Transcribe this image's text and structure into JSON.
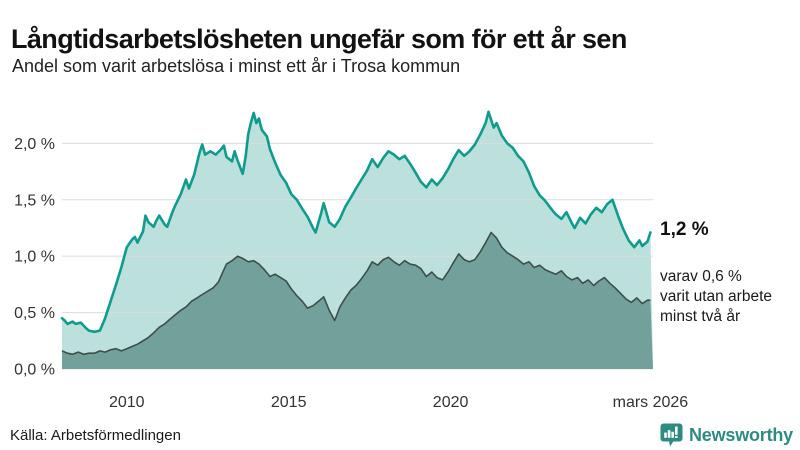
{
  "header": {
    "title": "Långtidsarbetslösheten ungefär som för ett år sen",
    "subtitle": "Andel som varit arbetslösa i minst ett år i Trosa kommun"
  },
  "annotations": {
    "latest_value": "1,2 %",
    "secondary_line1": "varav 0,6 %",
    "secondary_line2": "varit utan arbete",
    "secondary_line3": "minst två år"
  },
  "footer": {
    "source": "Källa: Arbetsförmedlingen",
    "brand": "Newsworthy"
  },
  "colors": {
    "accent_teal_line": "#0f9b8e",
    "light_area_fill": "#bce0db",
    "dark_area_line": "#3e4f4b",
    "dark_area_fill": "#72a19b",
    "gridline": "#dcdcdc",
    "axis_label": "#333333",
    "brand_teal": "#2e8b82"
  },
  "chart_data": {
    "type": "area",
    "title": "Långtidsarbetslösheten ungefär som för ett år sen",
    "subtitle": "Andel som varit arbetslösa i minst ett år i Trosa kommun",
    "xlabel": "",
    "ylabel": "",
    "x_range": [
      2008,
      2026.25
    ],
    "y_range": [
      0,
      2.34
    ],
    "grid": true,
    "legend_position": "none",
    "y_ticks": [
      {
        "v": 0.0,
        "label": "0,0 %"
      },
      {
        "v": 0.5,
        "label": "0,5 %"
      },
      {
        "v": 1.0,
        "label": "1,0 %"
      },
      {
        "v": 1.5,
        "label": "1,5 %"
      },
      {
        "v": 2.0,
        "label": "2,0 %"
      }
    ],
    "x_ticks": [
      {
        "x": 2010,
        "label": "2010"
      },
      {
        "x": 2015,
        "label": "2015"
      },
      {
        "x": 2020,
        "label": "2020"
      },
      {
        "x": 2026.17,
        "label": "mars 2026"
      }
    ],
    "series": [
      {
        "name": "Andel arbetslösa minst ett år",
        "end_label": "1,2 %",
        "points": [
          [
            2008.0,
            0.45
          ],
          [
            2008.08,
            0.43
          ],
          [
            2008.17,
            0.4
          ],
          [
            2008.33,
            0.42
          ],
          [
            2008.42,
            0.4
          ],
          [
            2008.58,
            0.41
          ],
          [
            2008.75,
            0.36
          ],
          [
            2008.83,
            0.34
          ],
          [
            2009.0,
            0.33
          ],
          [
            2009.17,
            0.34
          ],
          [
            2009.33,
            0.45
          ],
          [
            2009.5,
            0.6
          ],
          [
            2009.67,
            0.75
          ],
          [
            2009.83,
            0.9
          ],
          [
            2010.0,
            1.08
          ],
          [
            2010.17,
            1.15
          ],
          [
            2010.25,
            1.17
          ],
          [
            2010.33,
            1.12
          ],
          [
            2010.5,
            1.22
          ],
          [
            2010.58,
            1.36
          ],
          [
            2010.67,
            1.3
          ],
          [
            2010.83,
            1.26
          ],
          [
            2010.92,
            1.32
          ],
          [
            2011.0,
            1.36
          ],
          [
            2011.17,
            1.28
          ],
          [
            2011.25,
            1.26
          ],
          [
            2011.42,
            1.4
          ],
          [
            2011.5,
            1.45
          ],
          [
            2011.67,
            1.55
          ],
          [
            2011.83,
            1.68
          ],
          [
            2011.92,
            1.6
          ],
          [
            2012.08,
            1.72
          ],
          [
            2012.25,
            1.92
          ],
          [
            2012.33,
            1.99
          ],
          [
            2012.42,
            1.9
          ],
          [
            2012.58,
            1.93
          ],
          [
            2012.75,
            1.9
          ],
          [
            2012.92,
            1.95
          ],
          [
            2013.0,
            1.98
          ],
          [
            2013.08,
            1.88
          ],
          [
            2013.25,
            1.84
          ],
          [
            2013.33,
            1.93
          ],
          [
            2013.42,
            1.85
          ],
          [
            2013.58,
            1.73
          ],
          [
            2013.67,
            1.88
          ],
          [
            2013.75,
            2.08
          ],
          [
            2013.83,
            2.18
          ],
          [
            2013.92,
            2.27
          ],
          [
            2014.0,
            2.18
          ],
          [
            2014.08,
            2.22
          ],
          [
            2014.17,
            2.12
          ],
          [
            2014.33,
            2.06
          ],
          [
            2014.42,
            1.95
          ],
          [
            2014.58,
            1.83
          ],
          [
            2014.75,
            1.72
          ],
          [
            2014.92,
            1.65
          ],
          [
            2015.08,
            1.55
          ],
          [
            2015.25,
            1.5
          ],
          [
            2015.42,
            1.42
          ],
          [
            2015.58,
            1.35
          ],
          [
            2015.75,
            1.25
          ],
          [
            2015.83,
            1.21
          ],
          [
            2016.0,
            1.38
          ],
          [
            2016.08,
            1.47
          ],
          [
            2016.25,
            1.3
          ],
          [
            2016.42,
            1.26
          ],
          [
            2016.58,
            1.33
          ],
          [
            2016.75,
            1.44
          ],
          [
            2016.92,
            1.52
          ],
          [
            2017.08,
            1.6
          ],
          [
            2017.25,
            1.68
          ],
          [
            2017.42,
            1.76
          ],
          [
            2017.58,
            1.86
          ],
          [
            2017.75,
            1.79
          ],
          [
            2017.92,
            1.87
          ],
          [
            2018.08,
            1.93
          ],
          [
            2018.25,
            1.9
          ],
          [
            2018.42,
            1.86
          ],
          [
            2018.58,
            1.89
          ],
          [
            2018.75,
            1.82
          ],
          [
            2018.92,
            1.74
          ],
          [
            2019.08,
            1.66
          ],
          [
            2019.25,
            1.61
          ],
          [
            2019.42,
            1.68
          ],
          [
            2019.58,
            1.63
          ],
          [
            2019.75,
            1.69
          ],
          [
            2019.92,
            1.77
          ],
          [
            2020.08,
            1.86
          ],
          [
            2020.25,
            1.94
          ],
          [
            2020.42,
            1.89
          ],
          [
            2020.58,
            1.93
          ],
          [
            2020.75,
            1.99
          ],
          [
            2020.92,
            2.08
          ],
          [
            2021.08,
            2.18
          ],
          [
            2021.17,
            2.28
          ],
          [
            2021.33,
            2.14
          ],
          [
            2021.42,
            2.18
          ],
          [
            2021.58,
            2.07
          ],
          [
            2021.75,
            2.0
          ],
          [
            2021.92,
            1.96
          ],
          [
            2022.08,
            1.89
          ],
          [
            2022.25,
            1.84
          ],
          [
            2022.42,
            1.74
          ],
          [
            2022.58,
            1.62
          ],
          [
            2022.75,
            1.54
          ],
          [
            2022.92,
            1.49
          ],
          [
            2023.08,
            1.43
          ],
          [
            2023.25,
            1.37
          ],
          [
            2023.42,
            1.33
          ],
          [
            2023.58,
            1.39
          ],
          [
            2023.75,
            1.29
          ],
          [
            2023.83,
            1.25
          ],
          [
            2024.0,
            1.34
          ],
          [
            2024.17,
            1.29
          ],
          [
            2024.33,
            1.37
          ],
          [
            2024.5,
            1.43
          ],
          [
            2024.67,
            1.39
          ],
          [
            2024.83,
            1.46
          ],
          [
            2025.0,
            1.5
          ],
          [
            2025.17,
            1.36
          ],
          [
            2025.33,
            1.24
          ],
          [
            2025.5,
            1.14
          ],
          [
            2025.67,
            1.08
          ],
          [
            2025.83,
            1.14
          ],
          [
            2025.92,
            1.09
          ],
          [
            2026.08,
            1.13
          ],
          [
            2026.17,
            1.21
          ]
        ]
      },
      {
        "name": "varav utan arbete minst två år",
        "end_label": "varav 0,6 % varit utan arbete minst två år",
        "points": [
          [
            2008.0,
            0.16
          ],
          [
            2008.17,
            0.14
          ],
          [
            2008.33,
            0.13
          ],
          [
            2008.5,
            0.15
          ],
          [
            2008.67,
            0.13
          ],
          [
            2008.83,
            0.14
          ],
          [
            2009.0,
            0.14
          ],
          [
            2009.17,
            0.16
          ],
          [
            2009.33,
            0.15
          ],
          [
            2009.5,
            0.17
          ],
          [
            2009.67,
            0.18
          ],
          [
            2009.83,
            0.16
          ],
          [
            2010.0,
            0.18
          ],
          [
            2010.17,
            0.2
          ],
          [
            2010.33,
            0.22
          ],
          [
            2010.5,
            0.25
          ],
          [
            2010.67,
            0.28
          ],
          [
            2010.83,
            0.32
          ],
          [
            2011.0,
            0.37
          ],
          [
            2011.17,
            0.4
          ],
          [
            2011.33,
            0.44
          ],
          [
            2011.5,
            0.48
          ],
          [
            2011.67,
            0.52
          ],
          [
            2011.83,
            0.55
          ],
          [
            2012.0,
            0.6
          ],
          [
            2012.17,
            0.63
          ],
          [
            2012.33,
            0.66
          ],
          [
            2012.5,
            0.69
          ],
          [
            2012.67,
            0.72
          ],
          [
            2012.83,
            0.77
          ],
          [
            2013.0,
            0.88
          ],
          [
            2013.08,
            0.93
          ],
          [
            2013.25,
            0.96
          ],
          [
            2013.42,
            1.0
          ],
          [
            2013.58,
            0.98
          ],
          [
            2013.75,
            0.95
          ],
          [
            2013.92,
            0.96
          ],
          [
            2014.08,
            0.93
          ],
          [
            2014.25,
            0.88
          ],
          [
            2014.42,
            0.82
          ],
          [
            2014.58,
            0.84
          ],
          [
            2014.75,
            0.81
          ],
          [
            2014.92,
            0.78
          ],
          [
            2015.08,
            0.71
          ],
          [
            2015.25,
            0.65
          ],
          [
            2015.42,
            0.6
          ],
          [
            2015.58,
            0.54
          ],
          [
            2015.75,
            0.56
          ],
          [
            2015.92,
            0.6
          ],
          [
            2016.08,
            0.64
          ],
          [
            2016.25,
            0.52
          ],
          [
            2016.42,
            0.43
          ],
          [
            2016.58,
            0.55
          ],
          [
            2016.75,
            0.63
          ],
          [
            2016.92,
            0.7
          ],
          [
            2017.08,
            0.74
          ],
          [
            2017.25,
            0.8
          ],
          [
            2017.42,
            0.87
          ],
          [
            2017.58,
            0.95
          ],
          [
            2017.75,
            0.92
          ],
          [
            2017.92,
            0.97
          ],
          [
            2018.08,
            0.99
          ],
          [
            2018.25,
            0.95
          ],
          [
            2018.42,
            0.92
          ],
          [
            2018.58,
            0.96
          ],
          [
            2018.75,
            0.93
          ],
          [
            2018.92,
            0.92
          ],
          [
            2019.08,
            0.89
          ],
          [
            2019.25,
            0.82
          ],
          [
            2019.42,
            0.86
          ],
          [
            2019.58,
            0.81
          ],
          [
            2019.75,
            0.79
          ],
          [
            2019.92,
            0.86
          ],
          [
            2020.08,
            0.94
          ],
          [
            2020.25,
            1.02
          ],
          [
            2020.42,
            0.97
          ],
          [
            2020.58,
            0.95
          ],
          [
            2020.75,
            0.97
          ],
          [
            2020.92,
            1.04
          ],
          [
            2021.08,
            1.12
          ],
          [
            2021.25,
            1.21
          ],
          [
            2021.42,
            1.16
          ],
          [
            2021.58,
            1.08
          ],
          [
            2021.75,
            1.03
          ],
          [
            2021.92,
            1.0
          ],
          [
            2022.08,
            0.97
          ],
          [
            2022.25,
            0.93
          ],
          [
            2022.42,
            0.95
          ],
          [
            2022.58,
            0.9
          ],
          [
            2022.75,
            0.92
          ],
          [
            2022.92,
            0.88
          ],
          [
            2023.08,
            0.86
          ],
          [
            2023.25,
            0.84
          ],
          [
            2023.42,
            0.87
          ],
          [
            2023.58,
            0.82
          ],
          [
            2023.75,
            0.79
          ],
          [
            2023.92,
            0.81
          ],
          [
            2024.08,
            0.76
          ],
          [
            2024.25,
            0.79
          ],
          [
            2024.42,
            0.74
          ],
          [
            2024.58,
            0.78
          ],
          [
            2024.75,
            0.81
          ],
          [
            2024.92,
            0.76
          ],
          [
            2025.08,
            0.72
          ],
          [
            2025.25,
            0.67
          ],
          [
            2025.42,
            0.62
          ],
          [
            2025.58,
            0.59
          ],
          [
            2025.75,
            0.63
          ],
          [
            2025.92,
            0.58
          ],
          [
            2026.08,
            0.61
          ],
          [
            2026.17,
            0.61
          ]
        ]
      }
    ]
  }
}
